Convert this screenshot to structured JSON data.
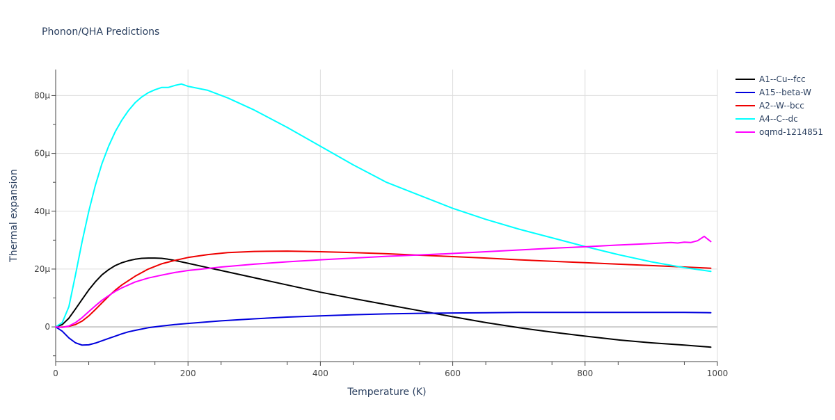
{
  "chart_data": {
    "type": "line",
    "title": "Phonon/QHA Predictions",
    "xlabel": "Temperature (K)",
    "ylabel": "Thermal expansion",
    "xlim": [
      0,
      1000
    ],
    "ylim": [
      -12,
      89
    ],
    "x_ticks": [
      0,
      200,
      400,
      600,
      800,
      1000
    ],
    "x_tick_labels": [
      "0",
      "200",
      "400",
      "600",
      "800",
      "1000"
    ],
    "y_ticks": [
      0,
      20,
      40,
      60,
      80
    ],
    "y_tick_labels": [
      "0",
      "20μ",
      "40μ",
      "60μ",
      "80μ"
    ],
    "y_scale_note": "values in units of 1e-6 (μ)",
    "grid": true,
    "legend_position": "right",
    "series": [
      {
        "name": "A1--Cu--fcc",
        "color": "#000000",
        "x": [
          0,
          10,
          20,
          30,
          40,
          50,
          60,
          70,
          80,
          90,
          100,
          110,
          120,
          130,
          140,
          150,
          160,
          170,
          180,
          200,
          220,
          250,
          300,
          350,
          400,
          450,
          500,
          550,
          600,
          650,
          700,
          750,
          800,
          850,
          900,
          950,
          990
        ],
        "y": [
          0,
          0.8,
          3.0,
          6.2,
          9.5,
          12.8,
          15.6,
          18.0,
          19.8,
          21.2,
          22.2,
          22.9,
          23.4,
          23.7,
          23.8,
          23.8,
          23.7,
          23.4,
          23.0,
          22.0,
          21.0,
          19.5,
          17.0,
          14.5,
          12.0,
          9.8,
          7.7,
          5.6,
          3.5,
          1.5,
          -0.3,
          -1.8,
          -3.2,
          -4.5,
          -5.5,
          -6.3,
          -7.0
        ]
      },
      {
        "name": "A15--beta-W",
        "color": "#0000dd",
        "x": [
          0,
          10,
          20,
          30,
          40,
          50,
          60,
          70,
          80,
          90,
          100,
          110,
          120,
          140,
          160,
          180,
          200,
          250,
          300,
          350,
          400,
          450,
          500,
          550,
          600,
          650,
          700,
          750,
          800,
          850,
          900,
          950,
          990
        ],
        "y": [
          0,
          -1.5,
          -3.8,
          -5.5,
          -6.3,
          -6.2,
          -5.6,
          -4.8,
          -4.0,
          -3.2,
          -2.4,
          -1.7,
          -1.2,
          -0.3,
          0.3,
          0.8,
          1.2,
          2.1,
          2.8,
          3.4,
          3.8,
          4.2,
          4.5,
          4.7,
          4.8,
          4.9,
          5.0,
          5.0,
          5.0,
          5.0,
          5.0,
          5.0,
          4.9
        ]
      },
      {
        "name": "A2--W--bcc",
        "color": "#ee0000",
        "x": [
          0,
          10,
          20,
          30,
          40,
          50,
          60,
          70,
          80,
          90,
          100,
          120,
          140,
          160,
          180,
          200,
          230,
          260,
          300,
          350,
          400,
          450,
          500,
          550,
          600,
          650,
          700,
          750,
          800,
          850,
          900,
          950,
          990
        ],
        "y": [
          0,
          -0.1,
          0.2,
          0.8,
          2.0,
          3.8,
          6.0,
          8.3,
          10.6,
          12.7,
          14.5,
          17.5,
          20.0,
          21.8,
          23.0,
          24.0,
          25.0,
          25.7,
          26.1,
          26.2,
          26.0,
          25.7,
          25.3,
          24.8,
          24.3,
          23.8,
          23.2,
          22.7,
          22.2,
          21.7,
          21.2,
          20.7,
          20.3
        ]
      },
      {
        "name": "A4--C--dc",
        "color": "#00ffff",
        "x": [
          0,
          10,
          20,
          30,
          40,
          50,
          60,
          70,
          80,
          90,
          100,
          110,
          120,
          130,
          140,
          150,
          160,
          170,
          180,
          190,
          200,
          230,
          260,
          300,
          350,
          400,
          450,
          500,
          550,
          600,
          650,
          700,
          750,
          800,
          850,
          900,
          950,
          990
        ],
        "y": [
          0,
          1.5,
          7.0,
          18.0,
          29.5,
          40.0,
          49.0,
          56.5,
          62.5,
          67.5,
          71.5,
          74.8,
          77.5,
          79.5,
          81.0,
          82.0,
          82.8,
          82.8,
          83.5,
          84.0,
          83.2,
          81.8,
          79.2,
          75.0,
          69.0,
          62.5,
          56.0,
          50.0,
          45.5,
          41.0,
          37.2,
          33.8,
          30.8,
          27.8,
          25.0,
          22.5,
          20.5,
          19.2
        ]
      },
      {
        "name": "oqmd-1214851",
        "color": "#ff00ff",
        "x": [
          0,
          10,
          20,
          30,
          40,
          50,
          60,
          70,
          80,
          90,
          100,
          120,
          140,
          160,
          180,
          200,
          250,
          300,
          350,
          400,
          450,
          500,
          550,
          600,
          650,
          700,
          750,
          800,
          850,
          900,
          930,
          940,
          950,
          960,
          970,
          980,
          990
        ],
        "y": [
          0,
          -0.2,
          0.3,
          1.5,
          3.2,
          5.3,
          7.3,
          9.2,
          10.8,
          12.3,
          13.5,
          15.5,
          16.9,
          17.9,
          18.8,
          19.5,
          20.7,
          21.7,
          22.5,
          23.2,
          23.8,
          24.4,
          24.9,
          25.4,
          26.0,
          26.6,
          27.2,
          27.7,
          28.3,
          28.8,
          29.2,
          29.0,
          29.3,
          29.2,
          29.8,
          31.3,
          29.5
        ]
      }
    ]
  }
}
